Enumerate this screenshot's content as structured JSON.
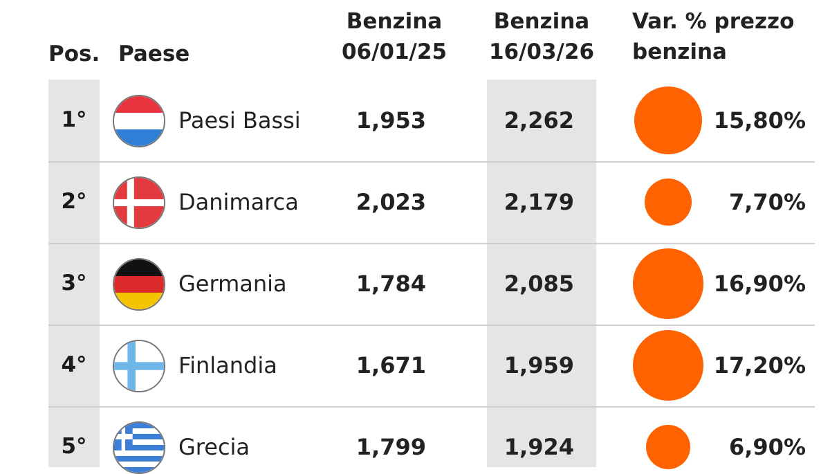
{
  "headers": {
    "pos": "Pos.",
    "country": "Paese",
    "price1_line1": "Benzina",
    "price1_line2": "06/01/25",
    "price2_line1": "Benzina",
    "price2_line2": "16/03/26",
    "change_line1": "Var. % prezzo",
    "change_line2": "benzina"
  },
  "colors": {
    "bubble": "#ff6200",
    "shade": "#e5e5e5"
  },
  "rows": [
    {
      "pos": "1°",
      "country": "Paesi Bassi",
      "flag": "netherlands-flag-icon",
      "price1": "1,953",
      "price2": "2,262",
      "change": "15,80%"
    },
    {
      "pos": "2°",
      "country": "Danimarca",
      "flag": "denmark-flag-icon",
      "price1": "2,023",
      "price2": "2,179",
      "change": "7,70%"
    },
    {
      "pos": "3°",
      "country": "Germania",
      "flag": "germany-flag-icon",
      "price1": "1,784",
      "price2": "2,085",
      "change": "16,90%"
    },
    {
      "pos": "4°",
      "country": "Finlandia",
      "flag": "finland-flag-icon",
      "price1": "1,671",
      "price2": "1,959",
      "change": "17,20%"
    },
    {
      "pos": "5°",
      "country": "Grecia",
      "flag": "greece-flag-icon",
      "price1": "1,799",
      "price2": "1,924",
      "change": "6,90%"
    }
  ],
  "chart_data": {
    "type": "table",
    "columns": [
      "Pos.",
      "Paese",
      "Benzina 06/01/25",
      "Benzina 16/03/26",
      "Var. % prezzo benzina"
    ],
    "categories": [
      "Paesi Bassi",
      "Danimarca",
      "Germania",
      "Finlandia",
      "Grecia"
    ],
    "series": [
      {
        "name": "Benzina 06/01/25",
        "values": [
          1.953,
          2.023,
          1.784,
          1.671,
          1.799
        ]
      },
      {
        "name": "Benzina 16/03/26",
        "values": [
          2.262,
          2.179,
          2.085,
          1.959,
          1.924
        ]
      },
      {
        "name": "Var. % prezzo benzina",
        "values": [
          15.8,
          7.7,
          16.9,
          17.2,
          6.9
        ]
      }
    ]
  }
}
